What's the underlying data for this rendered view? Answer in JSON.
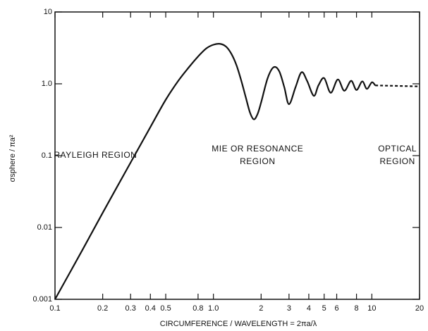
{
  "chart_data": {
    "type": "line",
    "xlabel": "CIRCUMFERENCE / WAVELENGTH = 2πa/λ",
    "ylabel": "σsphere / πa²",
    "xscale": "log",
    "yscale": "log",
    "color": "#111111",
    "xlim": [
      0.1,
      20
    ],
    "ylim": [
      0.001,
      10
    ],
    "xticks": [
      0.1,
      0.2,
      0.3,
      0.4,
      0.5,
      0.8,
      {
        "value": 1,
        "label": "1.0"
      },
      2,
      3,
      4,
      5,
      6,
      8,
      10,
      20
    ],
    "yticks": [
      0.001,
      0.01,
      0.1,
      {
        "value": 1,
        "label": "1.0"
      },
      10
    ],
    "series": [
      {
        "dashed": false,
        "x": [
          0.1,
          0.15,
          0.2,
          0.3,
          0.4,
          0.5,
          0.6,
          0.7,
          0.8,
          0.9,
          1.0,
          1.1,
          1.2,
          1.3,
          1.4,
          1.5,
          1.6,
          1.7,
          1.8,
          1.9,
          2.0,
          2.2,
          2.4,
          2.6,
          2.8,
          3.0,
          3.3,
          3.6,
          3.9,
          4.3,
          4.6,
          5.0,
          5.5,
          6.1,
          6.7,
          7.4,
          8.0,
          8.7,
          9.3,
          10,
          10.5
        ],
        "values": [
          0.001,
          0.005,
          0.016,
          0.08,
          0.25,
          0.6,
          1.1,
          1.7,
          2.4,
          3.1,
          3.5,
          3.6,
          3.3,
          2.6,
          1.8,
          1.1,
          0.65,
          0.4,
          0.32,
          0.38,
          0.55,
          1.2,
          1.7,
          1.5,
          0.9,
          0.52,
          0.9,
          1.45,
          1.1,
          0.68,
          0.95,
          1.2,
          0.75,
          1.15,
          0.8,
          1.1,
          0.82,
          1.08,
          0.85,
          1.05,
          0.95
        ]
      },
      {
        "dashed": true,
        "x": [
          10.5,
          20
        ],
        "values": [
          0.95,
          0.92
        ]
      }
    ],
    "annotations": [
      {
        "lines": [
          "RAYLEIGH REGION"
        ],
        "x": 0.18,
        "y": 0.1
      },
      {
        "lines": [
          "MIE OR RESONANCE",
          "REGION"
        ],
        "x": 1.9,
        "y": 0.1
      },
      {
        "lines": [
          "OPTICAL",
          "REGION"
        ],
        "x": 14.5,
        "y": 0.1
      }
    ]
  }
}
